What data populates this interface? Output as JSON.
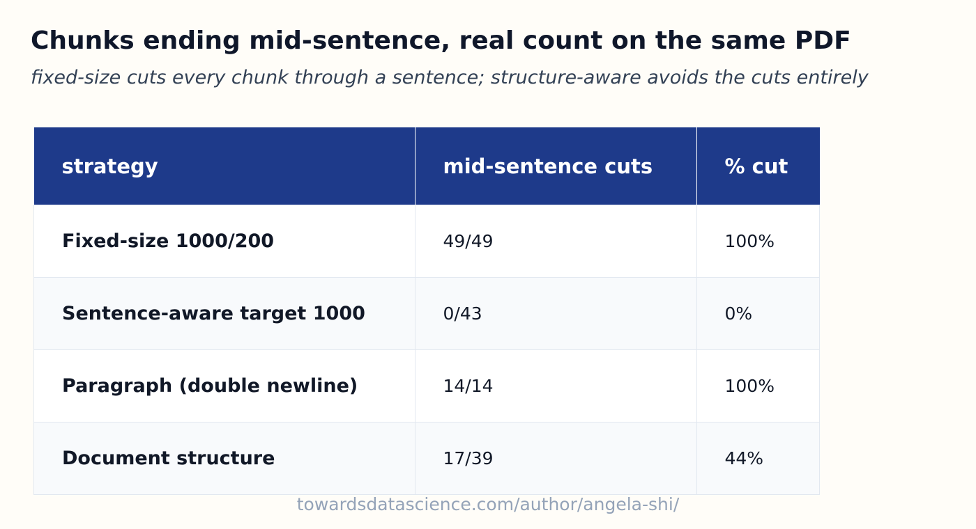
{
  "header": {
    "title": "Chunks ending mid-sentence, real count on the same PDF",
    "subtitle": "fixed-size cuts every chunk through a sentence; structure-aware avoids the cuts entirely"
  },
  "table": {
    "columns": [
      "strategy",
      "mid-sentence cuts",
      "% cut"
    ],
    "rows": [
      [
        "Fixed-size 1000/200",
        "49/49",
        "100%"
      ],
      [
        "Sentence-aware target 1000",
        "0/43",
        "0%"
      ],
      [
        "Paragraph (double newline)",
        "14/14",
        "100%"
      ],
      [
        "Document structure",
        "17/39",
        "44%"
      ]
    ]
  },
  "footer": "towardsdatascience.com/author/angela-shi/"
}
